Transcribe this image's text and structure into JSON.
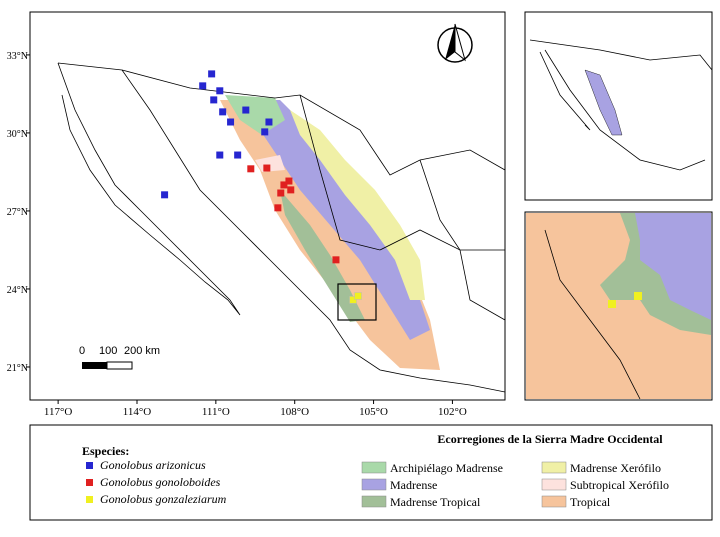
{
  "map": {
    "xlim": [
      -118.07,
      -100.0
    ],
    "ylim": [
      19.73,
      34.65
    ],
    "xticks": [
      {
        "value": -117,
        "label": "117°O"
      },
      {
        "value": -114,
        "label": "114°O"
      },
      {
        "value": -111,
        "label": "111°O"
      },
      {
        "value": -108,
        "label": "108°O"
      },
      {
        "value": -105,
        "label": "105°O"
      },
      {
        "value": -102,
        "label": "102°O"
      }
    ],
    "yticks": [
      {
        "value": 33,
        "label": "33°N"
      },
      {
        "value": 30,
        "label": "30°N"
      },
      {
        "value": 27,
        "label": "27°N"
      },
      {
        "value": 24,
        "label": "24°N"
      },
      {
        "value": 21,
        "label": "21°N"
      }
    ],
    "scale_labels": [
      "0",
      "100",
      "200 km"
    ]
  },
  "species_title": "Especies:",
  "species": [
    {
      "name": "Gonolobus arizonicus",
      "color": "#2626d0",
      "points": [
        [
          -111.16,
          32.27
        ],
        [
          -111.5,
          31.81
        ],
        [
          -110.85,
          31.62
        ],
        [
          -111.08,
          31.27
        ],
        [
          -110.74,
          30.81
        ],
        [
          -110.44,
          30.42
        ],
        [
          -109.86,
          30.88
        ],
        [
          -109.14,
          30.04
        ],
        [
          -108.98,
          30.42
        ],
        [
          -110.85,
          29.15
        ],
        [
          -110.17,
          29.15
        ],
        [
          -112.95,
          27.62
        ]
      ]
    },
    {
      "name": "Gonolobus gonoloboides",
      "color": "#e02020",
      "points": [
        [
          -109.67,
          28.62
        ],
        [
          -109.06,
          28.65
        ],
        [
          -108.41,
          28.0
        ],
        [
          -108.22,
          28.15
        ],
        [
          -108.15,
          27.81
        ],
        [
          -108.53,
          27.69
        ],
        [
          -108.64,
          27.12
        ],
        [
          -106.43,
          25.12
        ]
      ]
    },
    {
      "name": "Gonolobus gonzaleziarum",
      "color": "#f0f020",
      "points": [
        [
          -105.78,
          23.58
        ],
        [
          -105.59,
          23.73
        ]
      ]
    }
  ],
  "ecoregions_title": "Ecorregiones de la Sierra Madre Occidental",
  "ecoregions": [
    {
      "name": "Archipiélago Madrense",
      "color": "#a9d9a9"
    },
    {
      "name": "Madrense",
      "color": "#a8a2e2"
    },
    {
      "name": "Madrense Tropical",
      "color": "#a2bf98"
    },
    {
      "name": "Madrense Xerófilo",
      "color": "#f0f0a6"
    },
    {
      "name": "Subtropical Xerófilo",
      "color": "#fde2de"
    },
    {
      "name": "Tropical",
      "color": "#f6c49c"
    }
  ]
}
